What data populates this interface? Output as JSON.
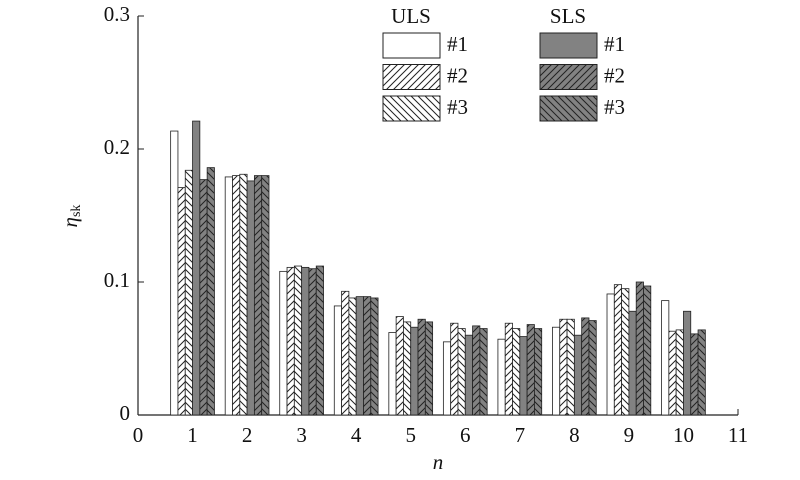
{
  "chart_data": {
    "type": "bar",
    "x": [
      1,
      2,
      3,
      4,
      5,
      6,
      7,
      8,
      9,
      10
    ],
    "xlabel": "n",
    "ylabel": "η",
    "ylabel_subscript": "sk",
    "xlim": [
      0,
      11
    ],
    "xticks": [
      0,
      1,
      2,
      3,
      4,
      5,
      6,
      7,
      8,
      9,
      10,
      11
    ],
    "ylim": [
      0,
      0.3
    ],
    "yticks": [
      0,
      0.1,
      0.2,
      0.3
    ],
    "grid": false,
    "legend_groups": [
      "ULS",
      "SLS"
    ],
    "series": [
      {
        "name": "#1",
        "group": "ULS",
        "color": "#ffffff",
        "hatch": "none",
        "values": [
          0.2135,
          0.179,
          0.108,
          0.082,
          0.062,
          0.055,
          0.057,
          0.066,
          0.091,
          0.086
        ]
      },
      {
        "name": "#2",
        "group": "ULS",
        "color": "#ffffff",
        "hatch": "/",
        "values": [
          0.171,
          0.18,
          0.111,
          0.093,
          0.074,
          0.069,
          0.069,
          0.072,
          0.098,
          0.063
        ]
      },
      {
        "name": "#3",
        "group": "ULS",
        "color": "#ffffff",
        "hatch": "\\",
        "values": [
          0.184,
          0.181,
          0.112,
          0.088,
          0.07,
          0.065,
          0.065,
          0.072,
          0.095,
          0.064
        ]
      },
      {
        "name": "#1",
        "group": "SLS",
        "color": "#828282",
        "hatch": "none",
        "values": [
          0.221,
          0.176,
          0.111,
          0.089,
          0.066,
          0.06,
          0.059,
          0.06,
          0.078,
          0.078
        ]
      },
      {
        "name": "#2",
        "group": "SLS",
        "color": "#828282",
        "hatch": "/",
        "values": [
          0.177,
          0.18,
          0.11,
          0.089,
          0.072,
          0.067,
          0.068,
          0.073,
          0.1,
          0.061
        ]
      },
      {
        "name": "#3",
        "group": "SLS",
        "color": "#828282",
        "hatch": "\\",
        "values": [
          0.186,
          0.18,
          0.112,
          0.088,
          0.07,
          0.065,
          0.065,
          0.071,
          0.097,
          0.064
        ]
      }
    ]
  }
}
